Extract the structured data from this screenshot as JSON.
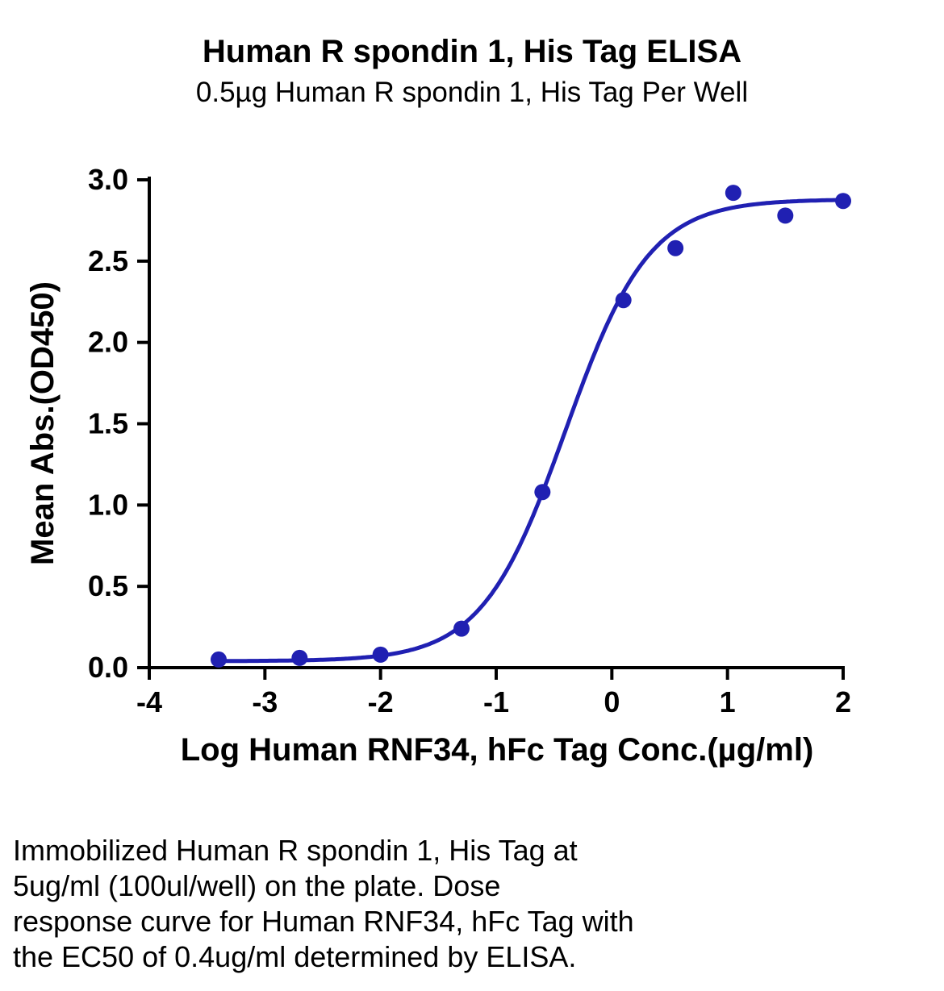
{
  "chart_data": {
    "type": "scatter",
    "title": "Human R spondin 1, His Tag ELISA",
    "subtitle": "0.5µg Human R spondin 1, His Tag Per Well",
    "xlabel": "Log Human RNF34, hFc Tag Conc.(µg/ml)",
    "ylabel": "Mean Abs.(OD450)",
    "xlim": [
      -4,
      2
    ],
    "ylim": [
      0,
      3
    ],
    "x_ticks": [
      -4,
      -3,
      -2,
      -1,
      0,
      1,
      2
    ],
    "y_ticks": [
      0.0,
      0.5,
      1.0,
      1.5,
      2.0,
      2.5,
      3.0
    ],
    "grid": false,
    "legend": "none",
    "marker_color": "#2020b2",
    "curve_color": "#2020b2",
    "axis_color": "#000000",
    "points": [
      {
        "x": -3.4,
        "y": 0.05
      },
      {
        "x": -2.7,
        "y": 0.06
      },
      {
        "x": -2.0,
        "y": 0.08
      },
      {
        "x": -1.3,
        "y": 0.24
      },
      {
        "x": -0.6,
        "y": 1.08
      },
      {
        "x": 0.1,
        "y": 2.26
      },
      {
        "x": 0.55,
        "y": 2.58
      },
      {
        "x": 1.05,
        "y": 2.92
      },
      {
        "x": 1.5,
        "y": 2.78
      },
      {
        "x": 2.0,
        "y": 2.87
      }
    ],
    "fit": {
      "model": "4PL sigmoid",
      "bottom": 0.04,
      "top": 2.88,
      "log_ec50": -0.4,
      "hill_slope": 1.2,
      "x_start": -3.4,
      "x_end": 2.0,
      "ec50_label": "0.4ug/ml"
    }
  },
  "caption": {
    "lines": [
      "Immobilized Human R spondin 1, His Tag at",
      "5ug/ml (100ul/well) on the plate. Dose",
      "response curve for Human RNF34, hFc Tag with",
      "the EC50 of 0.4ug/ml determined by ELISA."
    ]
  }
}
